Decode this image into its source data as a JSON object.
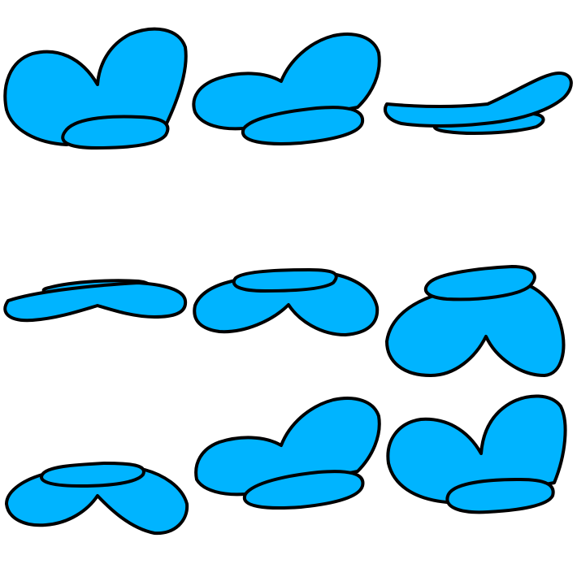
{
  "colors": {
    "fill": "#00b4ff",
    "outline": "#000000",
    "background": "#ffffff"
  },
  "grid": {
    "rows": 3,
    "columns": 3,
    "frames": [
      {
        "row": 1,
        "col": 1,
        "pose": "heart-up-with-disc-front"
      },
      {
        "row": 1,
        "col": 2,
        "pose": "tilted-heart-with-disc-front"
      },
      {
        "row": 1,
        "col": 3,
        "pose": "edge-on-flat"
      },
      {
        "row": 2,
        "col": 1,
        "pose": "edge-on-flat-reversed"
      },
      {
        "row": 2,
        "col": 2,
        "pose": "inverted-heart-with-disc-back"
      },
      {
        "row": 2,
        "col": 3,
        "pose": "inverted-heart-large-with-disc-back"
      },
      {
        "row": 3,
        "col": 1,
        "pose": "inverted-heart-small-with-disc-back"
      },
      {
        "row": 3,
        "col": 2,
        "pose": "tilted-heart-with-disc-front"
      },
      {
        "row": 3,
        "col": 3,
        "pose": "heart-up-with-disc-front"
      }
    ]
  }
}
